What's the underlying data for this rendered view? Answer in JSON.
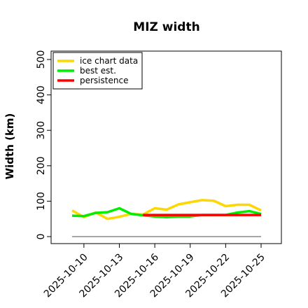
{
  "chart_data": {
    "type": "line",
    "title": "MIZ width",
    "xlabel": "",
    "ylabel": "Width (km)",
    "ylim": [
      0,
      500
    ],
    "yticks": [
      "0",
      "100",
      "200",
      "300",
      "400",
      "500"
    ],
    "x": [
      "2025-10-09",
      "2025-10-10",
      "2025-10-11",
      "2025-10-12",
      "2025-10-13",
      "2025-10-14",
      "2025-10-15",
      "2025-10-16",
      "2025-10-17",
      "2025-10-18",
      "2025-10-19",
      "2025-10-20",
      "2025-10-21",
      "2025-10-22",
      "2025-10-23",
      "2025-10-24",
      "2025-10-25"
    ],
    "xticks": [
      "2025-10-10",
      "2025-10-13",
      "2025-10-16",
      "2025-10-19",
      "2025-10-22",
      "2025-10-25"
    ],
    "series": [
      {
        "name": "ice chart data",
        "color": "#FFD700",
        "values": [
          74,
          55,
          68,
          50,
          56,
          64,
          62,
          80,
          76,
          91,
          97,
          103,
          101,
          86,
          90,
          90,
          74
        ]
      },
      {
        "name": "best est.",
        "color": "#00EE00",
        "values": [
          59,
          58,
          67,
          69,
          80,
          64,
          60,
          57,
          55,
          57,
          57,
          61,
          61,
          61,
          68,
          72,
          64
        ]
      },
      {
        "name": "persistence",
        "color": "#FF0000",
        "values": [
          null,
          null,
          null,
          null,
          null,
          null,
          61,
          61,
          61,
          61,
          61,
          61,
          61,
          61,
          61,
          61,
          61
        ]
      }
    ],
    "reference_line": {
      "value": 0,
      "color": "#888888"
    },
    "legend": "top-left",
    "grid": false
  }
}
